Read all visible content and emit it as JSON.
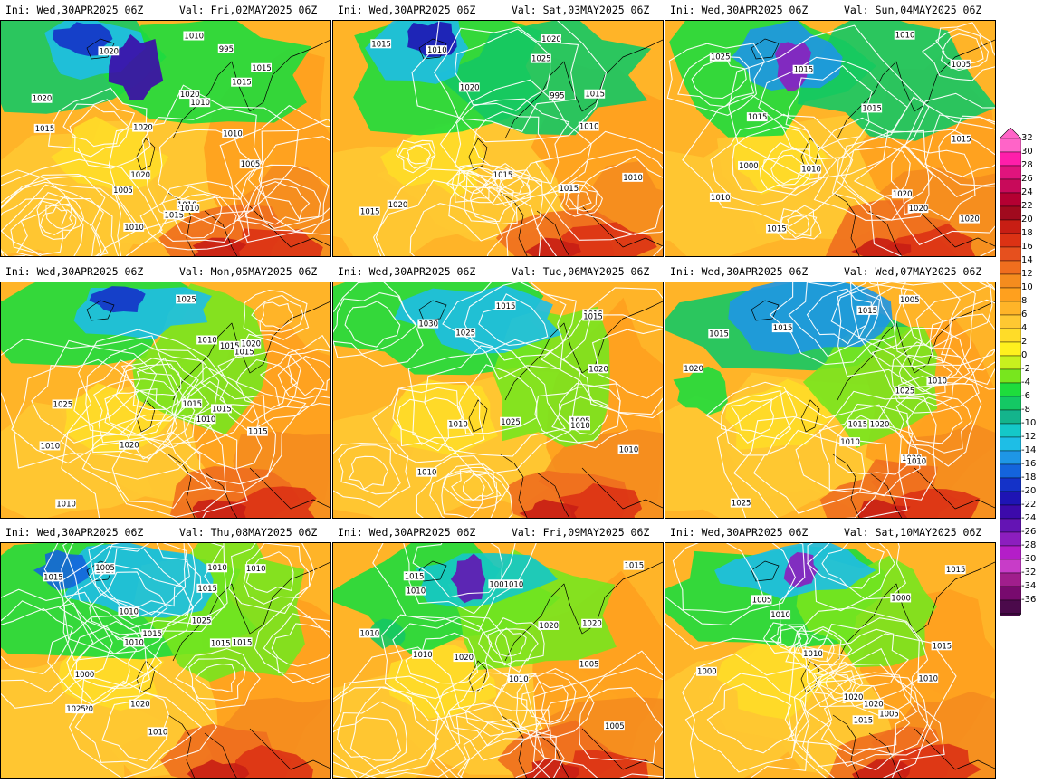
{
  "panels": [
    {
      "ini": "Ini: Wed,30APR2025 06Z",
      "val": "Val: Fri,02MAY2025 06Z",
      "isobars": [
        "1010",
        "1020",
        "1015",
        "1005",
        "1010",
        "995",
        "1015",
        "1020",
        "1010",
        "1015",
        "1015",
        "1020",
        "1005",
        "1010",
        "1020",
        "1010",
        "1010",
        "1020"
      ]
    },
    {
      "ini": "Ini: Wed,30APR2025 06Z",
      "val": "Val: Sat,03MAY2025 06Z",
      "isobars": [
        "1010",
        "1020",
        "995",
        "1015",
        "1010",
        "1015",
        "1025",
        "1010",
        "1015",
        "1020",
        "1020",
        "1015",
        "1015"
      ]
    },
    {
      "ini": "Ini: Wed,30APR2025 06Z",
      "val": "Val: Sun,04MAY2025 06Z",
      "isobars": [
        "1015",
        "1000",
        "1010",
        "1015",
        "1020",
        "1025",
        "1015",
        "1005",
        "1010",
        "1020",
        "1020",
        "1010",
        "1015",
        "1015"
      ]
    },
    {
      "ini": "Ini: Wed,30APR2025 06Z",
      "val": "Val: Mon,05MAY2025 06Z",
      "isobars": [
        "1015",
        "1015",
        "1010",
        "1025",
        "1020",
        "1015",
        "1010",
        "1010",
        "1025",
        "1020",
        "1015",
        "1015",
        "1010"
      ]
    },
    {
      "ini": "Ini: Wed,30APR2025 06Z",
      "val": "Val: Tue,06MAY2025 06Z",
      "isobars": [
        "1010",
        "1025",
        "1005",
        "1010",
        "1025",
        "1010",
        "1015",
        "1030",
        "1010",
        "1020",
        "1015",
        "1010"
      ]
    },
    {
      "ini": "Ini: Wed,30APR2025 06Z",
      "val": "Val: Wed,07MAY2025 06Z",
      "isobars": [
        "1020",
        "1025",
        "1010",
        "1015",
        "1005",
        "1010",
        "1015",
        "1020",
        "1025",
        "1015",
        "1020",
        "1010",
        "1015"
      ]
    },
    {
      "ini": "Ini: Wed,30APR2025 06Z",
      "val": "Val: Thu,08MAY2025 06Z",
      "isobars": [
        "1015",
        "1020",
        "1005",
        "1010",
        "1015",
        "1010",
        "1025",
        "1015",
        "1020",
        "1000",
        "1010",
        "1010",
        "1015",
        "1025",
        "1015",
        "1010",
        "1020"
      ]
    },
    {
      "ini": "Ini: Wed,30APR2025 06Z",
      "val": "Val: Fri,09MAY2025 06Z",
      "isobars": [
        "1020",
        "1010",
        "1005",
        "1015",
        "1020",
        "1010",
        "1005",
        "1010",
        "1015",
        "1001010",
        "1020",
        "1010"
      ]
    },
    {
      "ini": "Ini: Wed,30APR2025 06Z",
      "val": "Val: Sat,10MAY2025 06Z",
      "isobars": [
        "1015",
        "1010",
        "1005",
        "1015",
        "1000",
        "1020",
        "1015",
        "1000",
        "1005",
        "1010",
        "1020",
        "1010"
      ]
    }
  ],
  "colorbar": {
    "labels": [
      "32",
      "30",
      "28",
      "26",
      "24",
      "22",
      "20",
      "18",
      "16",
      "14",
      "12",
      "10",
      "8",
      "6",
      "4",
      "2",
      "0",
      "-2",
      "-4",
      "-6",
      "-8",
      "-10",
      "-12",
      "-14",
      "-16",
      "-18",
      "-20",
      "-22",
      "-24",
      "-26",
      "-28",
      "-30",
      "-32",
      "-34",
      "-36"
    ],
    "colors": [
      "#ff64c8",
      "#ff1eaa",
      "#e0147d",
      "#c80a5a",
      "#b40032",
      "#a00a1e",
      "#c81e14",
      "#dc3214",
      "#e6501e",
      "#f06e1e",
      "#f58c1e",
      "#ffa01e",
      "#ffb428",
      "#ffc832",
      "#ffdc28",
      "#fff01e",
      "#c8f01e",
      "#78e61e",
      "#1edc3c",
      "#14c864",
      "#14b48c",
      "#14c8c8",
      "#1ebee6",
      "#1e96e6",
      "#1464dc",
      "#1432c8",
      "#1e14b4",
      "#3c0aaa",
      "#6414b4",
      "#8c1ebe",
      "#b41ec8",
      "#c83cc8",
      "#a01e8c",
      "#780a6e",
      "#4b0a4b"
    ]
  }
}
